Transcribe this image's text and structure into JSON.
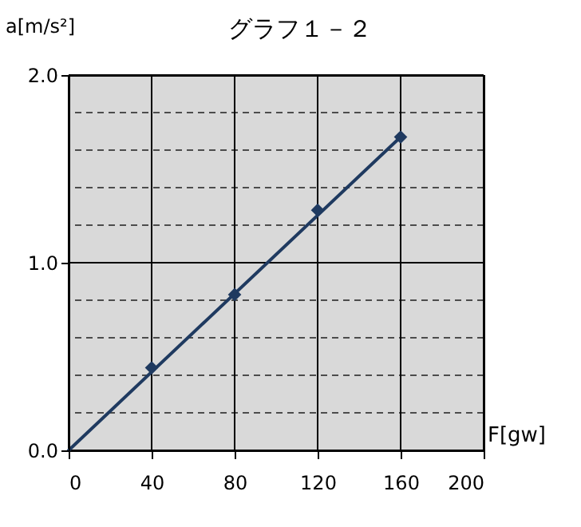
{
  "chart_data": {
    "type": "scatter",
    "title": "グラフ１－２",
    "xlabel": "F[gw]",
    "ylabel": "a[m/s²]",
    "x": [
      40,
      80,
      120,
      160
    ],
    "series": [
      {
        "type": "scatter",
        "color": "#1f3a60",
        "marker": "diamond",
        "values": [
          0.44,
          0.83,
          1.28,
          1.67
        ]
      },
      {
        "type": "line",
        "color": "#1f3a60",
        "marker": "none",
        "x": [
          0,
          160
        ],
        "values": [
          0,
          1.67
        ]
      }
    ],
    "xlim": [
      0,
      200
    ],
    "xticks": [
      0,
      40,
      80,
      120,
      160,
      200
    ],
    "ylim": [
      0,
      2
    ],
    "yticks": [
      {
        "value": 0,
        "label": "0.0"
      },
      {
        "value": 0.2,
        "label": null
      },
      {
        "value": 0.4,
        "label": null
      },
      {
        "value": 0.6,
        "label": null
      },
      {
        "value": 0.8,
        "label": null
      },
      {
        "value": 1,
        "label": "1.0"
      },
      {
        "value": 1.2,
        "label": null
      },
      {
        "value": 1.4,
        "label": null
      },
      {
        "value": 1.6,
        "label": null
      },
      {
        "value": 1.8,
        "label": null
      },
      {
        "value": 2,
        "label": "2.0"
      }
    ],
    "grid": true
  }
}
